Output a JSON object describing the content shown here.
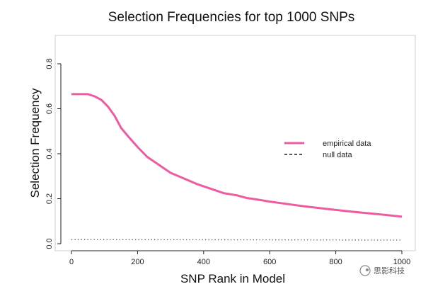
{
  "chart_data": {
    "type": "line",
    "title": "Selection Frequencies for top 1000 SNPs",
    "xlabel": "SNP Rank in Model",
    "ylabel": "Selection Frequency",
    "xlim": [
      0,
      1000
    ],
    "ylim": [
      0,
      0.9
    ],
    "xticks": [
      "0",
      "200",
      "400",
      "600",
      "800",
      "1000"
    ],
    "yticks": [
      "0.0",
      "0.2",
      "0.4",
      "0.6",
      "0.8"
    ],
    "grid": false,
    "legend_position": "right",
    "series": [
      {
        "name": "empirical data",
        "color": "#ee5ba0",
        "style": "solid",
        "x": [
          0,
          20,
          50,
          70,
          90,
          110,
          130,
          150,
          170,
          200,
          230,
          260,
          300,
          340,
          380,
          420,
          460,
          500,
          530,
          560,
          600,
          650,
          700,
          750,
          800,
          850,
          900,
          950,
          1000
        ],
        "y": [
          0.665,
          0.665,
          0.665,
          0.655,
          0.64,
          0.61,
          0.57,
          0.515,
          0.48,
          0.43,
          0.385,
          0.355,
          0.315,
          0.29,
          0.265,
          0.245,
          0.225,
          0.215,
          0.203,
          0.197,
          0.187,
          0.177,
          0.167,
          0.158,
          0.15,
          0.142,
          0.135,
          0.128,
          0.12
        ]
      },
      {
        "name": "null data",
        "color": "#555555",
        "style": "dotted",
        "x": [
          0,
          1000
        ],
        "y": [
          0.018,
          0.016
        ]
      }
    ]
  },
  "watermark": "思影科技"
}
